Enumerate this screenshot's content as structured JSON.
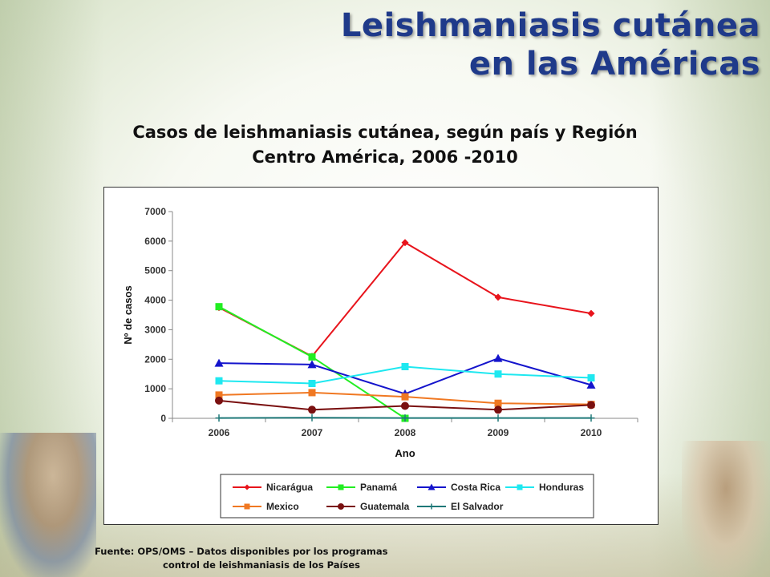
{
  "slide": {
    "title_line1": "Leishmaniasis cutánea",
    "title_line2": "en las Américas"
  },
  "chart_title_line1": "Casos de leishmaniasis cutánea, según país y Región",
  "chart_title_line2": "Centro América, 2006 -2010",
  "source": {
    "line1": "Fuente:  OPS/OMS – Datos disponibles por los programas",
    "line2": "control de leishmaniasis de los Países"
  },
  "chart_data": {
    "type": "line",
    "xlabel": "Ano",
    "ylabel": "Nº de casos",
    "ylim": [
      0,
      7000
    ],
    "yticks": [
      0,
      1000,
      2000,
      3000,
      4000,
      5000,
      6000,
      7000
    ],
    "categories": [
      "2006",
      "2007",
      "2008",
      "2009",
      "2010"
    ],
    "grid": false,
    "legend_position": "bottom",
    "series": [
      {
        "name": "Nicarágua",
        "color": "#e8141c",
        "marker": "diamond",
        "values": [
          3750,
          2100,
          5950,
          4100,
          3550
        ]
      },
      {
        "name": "Panamá",
        "color": "#22ee22",
        "marker": "square",
        "values": [
          3780,
          2080,
          0,
          null,
          null
        ]
      },
      {
        "name": "Costa Rica",
        "color": "#1414cc",
        "marker": "triangle",
        "values": [
          1870,
          1820,
          830,
          2030,
          1130
        ]
      },
      {
        "name": "Honduras",
        "color": "#1ee8f0",
        "marker": "square",
        "values": [
          1270,
          1180,
          1750,
          1500,
          1370
        ]
      },
      {
        "name": "Mexico",
        "color": "#f07822",
        "marker": "square",
        "values": [
          790,
          870,
          730,
          510,
          470
        ]
      },
      {
        "name": "Guatemala",
        "color": "#7a1010",
        "marker": "circle",
        "values": [
          600,
          290,
          420,
          290,
          450
        ]
      },
      {
        "name": "El Salvador",
        "color": "#1e7878",
        "marker": "plus",
        "values": [
          10,
          20,
          10,
          10,
          10
        ]
      }
    ]
  }
}
